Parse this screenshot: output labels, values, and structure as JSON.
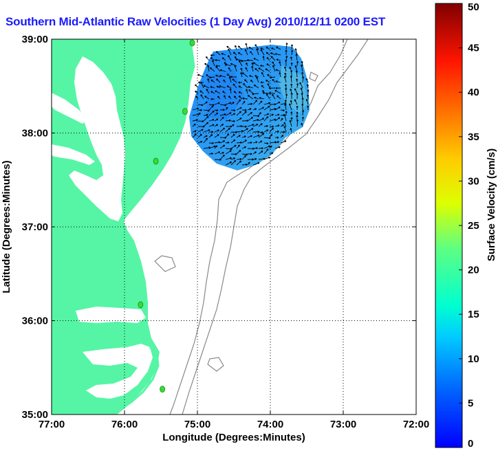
{
  "title": "Southern Mid-Atlantic Raw Velocities (1 Day Avg) 2010/12/11 0200 EST",
  "xaxis": {
    "label": "Longitude (Degrees:Minutes)",
    "ticks": [
      "77:00",
      "76:00",
      "75:00",
      "74:00",
      "73:00",
      "72:00"
    ],
    "range": [
      -77,
      -72
    ]
  },
  "yaxis": {
    "label": "Latitude (Degrees:Minutes)",
    "ticks": [
      "35:00",
      "36:00",
      "37:00",
      "38:00",
      "39:00"
    ],
    "range": [
      35,
      39
    ]
  },
  "colorbar": {
    "label": "Surface Velocity (cm/s)",
    "ticks": [
      "0",
      "5",
      "10",
      "15",
      "20",
      "25",
      "30",
      "35",
      "40",
      "45",
      "50"
    ],
    "range": [
      0,
      50
    ]
  },
  "colors": {
    "land": "#55f5a5",
    "water": "#ffffff",
    "current_field": "#2a9bf0",
    "stations": "#33dd33",
    "bathymetry": "#888888",
    "title": "#1a1aff"
  },
  "stations": [
    {
      "lon": -75.07,
      "lat": 38.96
    },
    {
      "lon": -75.17,
      "lat": 38.23
    },
    {
      "lon": -75.57,
      "lat": 37.7
    },
    {
      "lon": -75.78,
      "lat": 36.17
    },
    {
      "lon": -75.48,
      "lat": 35.27
    }
  ]
}
